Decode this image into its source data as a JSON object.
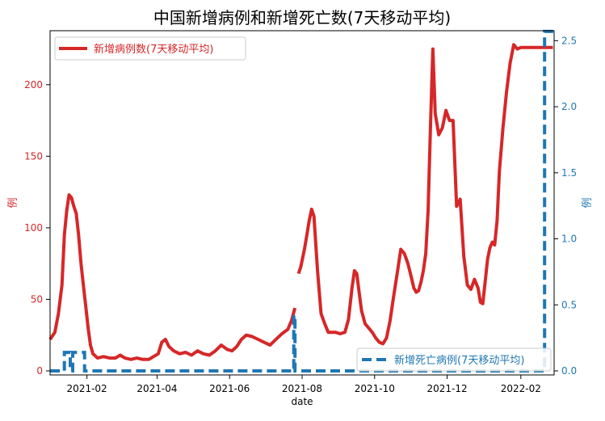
{
  "chart_data": {
    "type": "line",
    "title": "中国新增病例和新增死亡数(7天移动平均)",
    "xlabel": "date",
    "ylabel_left": "例",
    "ylabel_right": "例",
    "x_ticks": [
      "2021-02",
      "2021-04",
      "2021-06",
      "2021-08",
      "2021-10",
      "2021-12",
      "2022-02"
    ],
    "x_range": [
      "2021-01-01",
      "2022-03-01"
    ],
    "ylim_left": [
      0,
      240
    ],
    "ylim_right": [
      0,
      2.6
    ],
    "yticks_left": [
      0,
      50,
      100,
      150,
      200
    ],
    "yticks_right": [
      0.0,
      0.5,
      1.0,
      1.5,
      2.0,
      2.5
    ],
    "colors": {
      "cases": "#d62728",
      "deaths": "#1f77b4"
    },
    "grid": false,
    "legend_cases": {
      "placement": "top-left"
    },
    "legend_deaths": {
      "placement": "bottom-right"
    },
    "series": [
      {
        "name": "新增病例数(7天移动平均)",
        "axis": "left",
        "style": "solid",
        "x": [
          "2021-01-01",
          "2021-01-05",
          "2021-01-08",
          "2021-01-11",
          "2021-01-13",
          "2021-01-15",
          "2021-01-17",
          "2021-01-19",
          "2021-01-21",
          "2021-01-23",
          "2021-01-25",
          "2021-01-27",
          "2021-01-29",
          "2021-01-31",
          "2021-02-02",
          "2021-02-04",
          "2021-02-06",
          "2021-02-10",
          "2021-02-15",
          "2021-02-20",
          "2021-02-25",
          "2021-03-01",
          "2021-03-05",
          "2021-03-10",
          "2021-03-15",
          "2021-03-20",
          "2021-03-25",
          "2021-03-29",
          "2021-04-02",
          "2021-04-05",
          "2021-04-08",
          "2021-04-11",
          "2021-04-15",
          "2021-04-20",
          "2021-04-25",
          "2021-04-30",
          "2021-05-05",
          "2021-05-10",
          "2021-05-15",
          "2021-05-20",
          "2021-05-25",
          "2021-05-30",
          "2021-06-03",
          "2021-06-07",
          "2021-06-11",
          "2021-06-15",
          "2021-06-20",
          "2021-06-25",
          "2021-06-30",
          "2021-07-05",
          "2021-07-10",
          "2021-07-15",
          "2021-07-20",
          "2021-07-23",
          "2021-07-26",
          null,
          "2021-07-29",
          "2021-07-31",
          "2021-08-03",
          "2021-08-05",
          "2021-08-07",
          "2021-08-09",
          "2021-08-11",
          "2021-08-14",
          "2021-08-17",
          "2021-08-20",
          "2021-08-23",
          "2021-08-26",
          "2021-08-29",
          "2021-09-02",
          "2021-09-06",
          "2021-09-09",
          "2021-09-12",
          "2021-09-14",
          "2021-09-16",
          "2021-09-18",
          "2021-09-20",
          "2021-09-23",
          "2021-09-26",
          "2021-09-29",
          "2021-10-02",
          "2021-10-05",
          "2021-10-08",
          "2021-10-11",
          "2021-10-14",
          "2021-10-17",
          "2021-10-20",
          "2021-10-23",
          "2021-10-26",
          "2021-10-29",
          "2021-11-01",
          "2021-11-03",
          "2021-11-05",
          "2021-11-07",
          "2021-11-09",
          "2021-11-11",
          "2021-11-13",
          "2021-11-15",
          "2021-11-17",
          "2021-11-19",
          "2021-11-21",
          "2021-11-24",
          "2021-11-27",
          "2021-11-30",
          "2021-12-03",
          "2021-12-06",
          "2021-12-09",
          "2021-12-12",
          "2021-12-15",
          "2021-12-18",
          "2021-12-21",
          "2021-12-24",
          "2021-12-27",
          "2021-12-29",
          "2021-12-31",
          "2022-01-02",
          "2022-01-04",
          "2022-01-06",
          "2022-01-08",
          "2022-01-10",
          "2022-01-12",
          "2022-01-14",
          "2022-01-17",
          "2022-01-20",
          "2022-01-23",
          "2022-01-26",
          "2022-01-29",
          "2022-02-01",
          "2022-02-04",
          "2022-02-07",
          "2022-02-10",
          "2022-02-13",
          "2022-02-16",
          "2022-02-19",
          "2022-02-22",
          "2022-02-25",
          "2022-02-28"
        ],
        "values": [
          22,
          27,
          40,
          60,
          95,
          112,
          123,
          121,
          115,
          110,
          95,
          75,
          60,
          45,
          30,
          18,
          12,
          9,
          10,
          9,
          9,
          11,
          9,
          8,
          9,
          8,
          8,
          10,
          12,
          20,
          22,
          17,
          14,
          12,
          13,
          11,
          14,
          12,
          11,
          14,
          18,
          15,
          14,
          17,
          22,
          25,
          24,
          22,
          20,
          18,
          22,
          26,
          29,
          35,
          44,
          null,
          68,
          73,
          85,
          95,
          105,
          113,
          108,
          70,
          40,
          33,
          27,
          27,
          27,
          26,
          27,
          36,
          58,
          70,
          68,
          55,
          42,
          33,
          30,
          27,
          23,
          20,
          19,
          23,
          35,
          52,
          68,
          85,
          82,
          75,
          65,
          58,
          55,
          56,
          62,
          70,
          82,
          112,
          170,
          225,
          180,
          165,
          170,
          182,
          175,
          175,
          115,
          120,
          80,
          60,
          57,
          64,
          58,
          48,
          47,
          62,
          78,
          86,
          90,
          88,
          105,
          140,
          170,
          195,
          215,
          228,
          225,
          226,
          226,
          226,
          226,
          226,
          226,
          226,
          226,
          226,
          226
        ]
      },
      {
        "name": "新增死亡病例(7天移动平均)",
        "axis": "right",
        "style": "dashed",
        "x": [
          "2021-01-01",
          "2021-01-13",
          "2021-01-13",
          "2021-01-18",
          "2021-01-18",
          "2021-01-20",
          "2021-01-20",
          "2021-01-30",
          "2021-01-30",
          "2021-02-03",
          "2021-02-03",
          "2021-07-25",
          "2021-07-25",
          "2021-07-26",
          "2021-07-26",
          "2022-02-21",
          "2022-02-21",
          "2022-03-01"
        ],
        "values": [
          0,
          0,
          0.14,
          0.14,
          0,
          0,
          0.14,
          0.14,
          0,
          0,
          0,
          0,
          0.42,
          0.42,
          0,
          0,
          2.57,
          2.57
        ]
      }
    ]
  }
}
